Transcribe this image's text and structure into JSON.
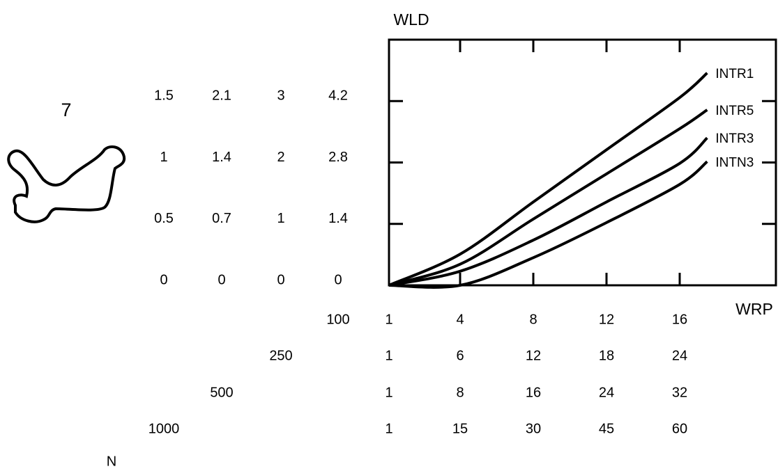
{
  "figure_number": "7",
  "chart_data": {
    "type": "line",
    "ylabel": "WLD",
    "xlabel": "WRP",
    "n_label": "N",
    "x": [
      1,
      4,
      8,
      12,
      16,
      17.5
    ],
    "xlim": [
      1,
      21.3
    ],
    "ylim": [
      0,
      5.6
    ],
    "xticks": [
      1,
      4,
      8,
      12,
      16
    ],
    "yticks": [
      0,
      1.4,
      2.8,
      4.2
    ],
    "series": [
      {
        "name": "INTR1",
        "color": "#000000",
        "values": [
          0,
          0.71,
          1.9,
          3.09,
          4.28,
          4.84
        ]
      },
      {
        "name": "INTR5",
        "color": "#000000",
        "values": [
          0,
          0.48,
          1.51,
          2.54,
          3.57,
          4.0
        ]
      },
      {
        "name": "INTR3",
        "color": "#000000",
        "values": [
          0,
          0.32,
          1.03,
          1.9,
          2.78,
          3.36
        ]
      },
      {
        "name": "INTN3",
        "color": "#000000",
        "values": [
          0,
          0,
          0.63,
          1.43,
          2.3,
          2.82
        ]
      }
    ],
    "scales": [
      {
        "n": 1000,
        "yticks": [
          0,
          0.5,
          1,
          1.5
        ],
        "xticks": [
          1,
          15,
          30,
          45,
          60
        ]
      },
      {
        "n": 500,
        "yticks": [
          0,
          0.7,
          1.4,
          2.1
        ],
        "xticks": [
          1,
          8,
          16,
          24,
          32
        ]
      },
      {
        "n": 250,
        "yticks": [
          0,
          1,
          2,
          3
        ],
        "xticks": [
          1,
          6,
          12,
          18,
          24
        ]
      },
      {
        "n": 100
      }
    ]
  }
}
